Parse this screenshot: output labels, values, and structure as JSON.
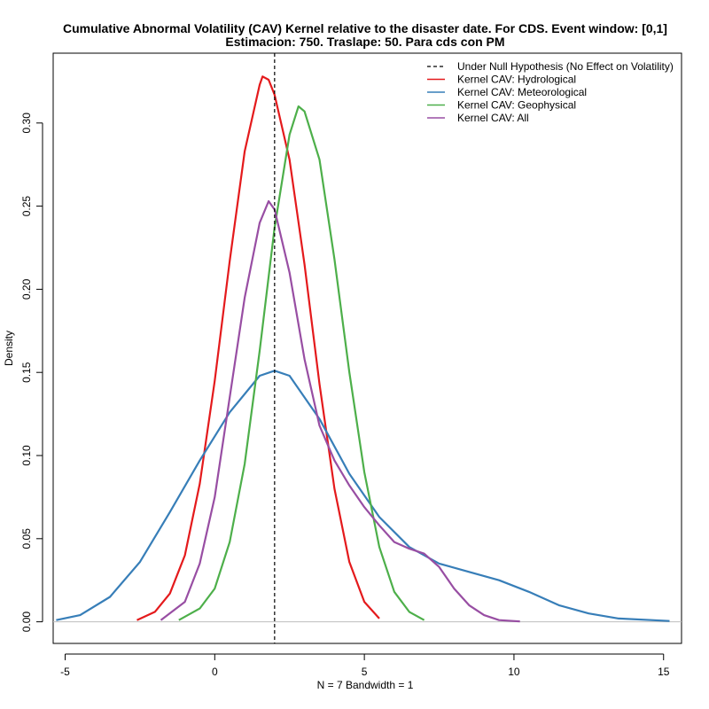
{
  "chart_data": {
    "type": "line",
    "title": "Cumulative Abnormal Volatility (CAV) Kernel relative to the disaster date. For CDS. Event window: [0,1]",
    "subtitle": "Estimacion: 750. Traslape: 50. Para cds con PM",
    "xlabel": "N = 7   Bandwidth = 1",
    "ylabel": "Density",
    "xlim": [
      -5.4,
      15.6
    ],
    "ylim": [
      -0.013,
      0.342
    ],
    "x_ticks": [
      -5,
      0,
      5,
      10,
      15
    ],
    "y_ticks": [
      0.0,
      0.05,
      0.1,
      0.15,
      0.2,
      0.25,
      0.3
    ],
    "x_tick_labels": [
      "-5",
      "0",
      "5",
      "10",
      "15"
    ],
    "y_tick_labels": [
      "0.00",
      "0.05",
      "0.10",
      "0.15",
      "0.20",
      "0.25",
      "0.30"
    ],
    "legend_position": "top-right",
    "baseline": {
      "y": 0,
      "color": "#bebebe"
    },
    "null_line": {
      "x": 2,
      "name": "Under Null Hypothesis (No Effect on Volatility)",
      "color": "#000000",
      "dash": "dashed"
    },
    "series": [
      {
        "name": "Kernel CAV: Hydrological",
        "color": "#e41a1c",
        "points": [
          [
            -2.6,
            0.001
          ],
          [
            -2.0,
            0.006
          ],
          [
            -1.5,
            0.017
          ],
          [
            -1.0,
            0.04
          ],
          [
            -0.5,
            0.083
          ],
          [
            0.0,
            0.145
          ],
          [
            0.5,
            0.217
          ],
          [
            1.0,
            0.283
          ],
          [
            1.5,
            0.323
          ],
          [
            1.6,
            0.328
          ],
          [
            1.8,
            0.326
          ],
          [
            2.0,
            0.317
          ],
          [
            2.5,
            0.278
          ],
          [
            3.0,
            0.215
          ],
          [
            3.5,
            0.143
          ],
          [
            4.0,
            0.08
          ],
          [
            4.5,
            0.036
          ],
          [
            5.0,
            0.012
          ],
          [
            5.5,
            0.002
          ]
        ]
      },
      {
        "name": "Kernel CAV: Meteorological",
        "color": "#377eb8",
        "points": [
          [
            -5.3,
            0.001
          ],
          [
            -4.5,
            0.004
          ],
          [
            -3.5,
            0.015
          ],
          [
            -2.5,
            0.036
          ],
          [
            -1.5,
            0.066
          ],
          [
            -0.5,
            0.097
          ],
          [
            0.5,
            0.126
          ],
          [
            1.5,
            0.148
          ],
          [
            2.0,
            0.151
          ],
          [
            2.5,
            0.148
          ],
          [
            3.5,
            0.122
          ],
          [
            4.5,
            0.089
          ],
          [
            5.5,
            0.063
          ],
          [
            6.5,
            0.045
          ],
          [
            7.5,
            0.035
          ],
          [
            8.5,
            0.03
          ],
          [
            9.5,
            0.025
          ],
          [
            10.5,
            0.018
          ],
          [
            11.5,
            0.01
          ],
          [
            12.5,
            0.005
          ],
          [
            13.5,
            0.002
          ],
          [
            15.2,
            0.0005
          ]
        ]
      },
      {
        "name": "Kernel CAV: Geophysical",
        "color": "#4daf4a",
        "points": [
          [
            -1.2,
            0.001
          ],
          [
            -0.5,
            0.008
          ],
          [
            0.0,
            0.02
          ],
          [
            0.5,
            0.048
          ],
          [
            1.0,
            0.095
          ],
          [
            1.5,
            0.163
          ],
          [
            2.0,
            0.237
          ],
          [
            2.5,
            0.293
          ],
          [
            2.8,
            0.31
          ],
          [
            3.0,
            0.307
          ],
          [
            3.5,
            0.278
          ],
          [
            4.0,
            0.218
          ],
          [
            4.5,
            0.15
          ],
          [
            5.0,
            0.09
          ],
          [
            5.5,
            0.045
          ],
          [
            6.0,
            0.018
          ],
          [
            6.5,
            0.006
          ],
          [
            7.0,
            0.001
          ]
        ]
      },
      {
        "name": "Kernel CAV: All",
        "color": "#984ea3",
        "points": [
          [
            -1.8,
            0.001
          ],
          [
            -1.0,
            0.012
          ],
          [
            -0.5,
            0.035
          ],
          [
            0.0,
            0.075
          ],
          [
            0.5,
            0.135
          ],
          [
            1.0,
            0.195
          ],
          [
            1.5,
            0.24
          ],
          [
            1.8,
            0.253
          ],
          [
            2.0,
            0.248
          ],
          [
            2.5,
            0.21
          ],
          [
            3.0,
            0.158
          ],
          [
            3.5,
            0.118
          ],
          [
            4.0,
            0.097
          ],
          [
            4.5,
            0.082
          ],
          [
            5.0,
            0.069
          ],
          [
            5.5,
            0.058
          ],
          [
            6.0,
            0.048
          ],
          [
            6.5,
            0.044
          ],
          [
            7.0,
            0.041
          ],
          [
            7.5,
            0.033
          ],
          [
            8.0,
            0.02
          ],
          [
            8.5,
            0.01
          ],
          [
            9.0,
            0.004
          ],
          [
            9.5,
            0.001
          ],
          [
            10.2,
            0.0002
          ]
        ]
      }
    ]
  }
}
